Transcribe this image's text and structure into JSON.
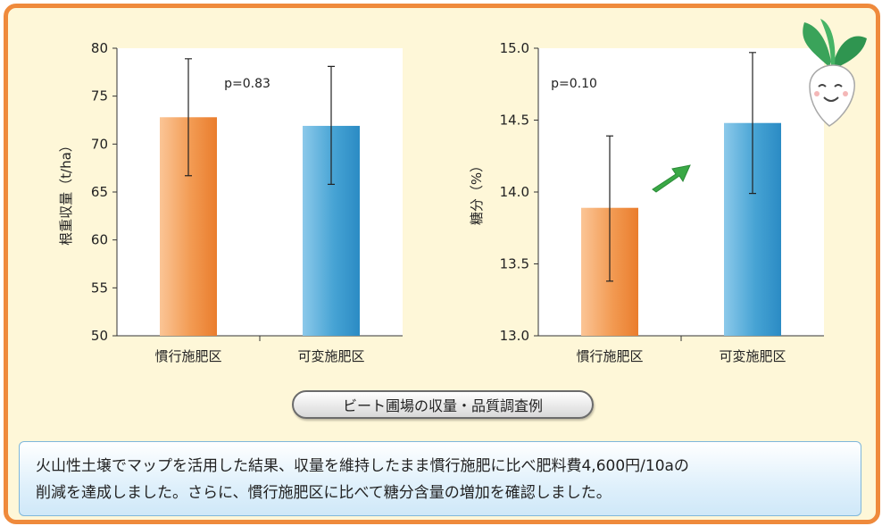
{
  "chart_data": [
    {
      "type": "bar",
      "ylabel": "根重収量（t/ha）",
      "ylim": [
        50,
        80
      ],
      "yticks": [
        "50",
        "55",
        "60",
        "65",
        "70",
        "75",
        "80"
      ],
      "categories": [
        "慣行施肥区",
        "可変施肥区"
      ],
      "values": [
        72.8,
        71.9
      ],
      "error_high": [
        78.9,
        78.1
      ],
      "error_low": [
        66.7,
        65.8
      ],
      "colors": [
        "#ef8a3c",
        "#3f9fd1"
      ],
      "annotation": "p=0.83"
    },
    {
      "type": "bar",
      "ylabel": "糖分（%）",
      "ylim": [
        13.0,
        15.0
      ],
      "yticks": [
        "13.0",
        "13.5",
        "14.0",
        "14.5",
        "15.0"
      ],
      "categories": [
        "慣行施肥区",
        "可変施肥区"
      ],
      "values": [
        13.89,
        14.48
      ],
      "error_high": [
        14.39,
        14.97
      ],
      "error_low": [
        13.38,
        13.99
      ],
      "colors": [
        "#ef8a3c",
        "#3f9fd1"
      ],
      "annotation": "p=0.10"
    }
  ],
  "caption": "ビート圃場の収量・品質調査例",
  "summary": {
    "line1": "火山性土壌でマップを活用した結果、収量を維持したまま慣行施肥に比べ肥料費4,600円/10aの",
    "line2": "削減を達成しました。さらに、慣行施肥区に比べて糖分含量の増加を確認しました。"
  },
  "colors": {
    "border": "#ef8a3c",
    "background": "#fef7d8",
    "arrow": "#39a845"
  },
  "icons": {
    "trend": "up-arrow-icon",
    "mascot": "beet-mascot-icon"
  }
}
